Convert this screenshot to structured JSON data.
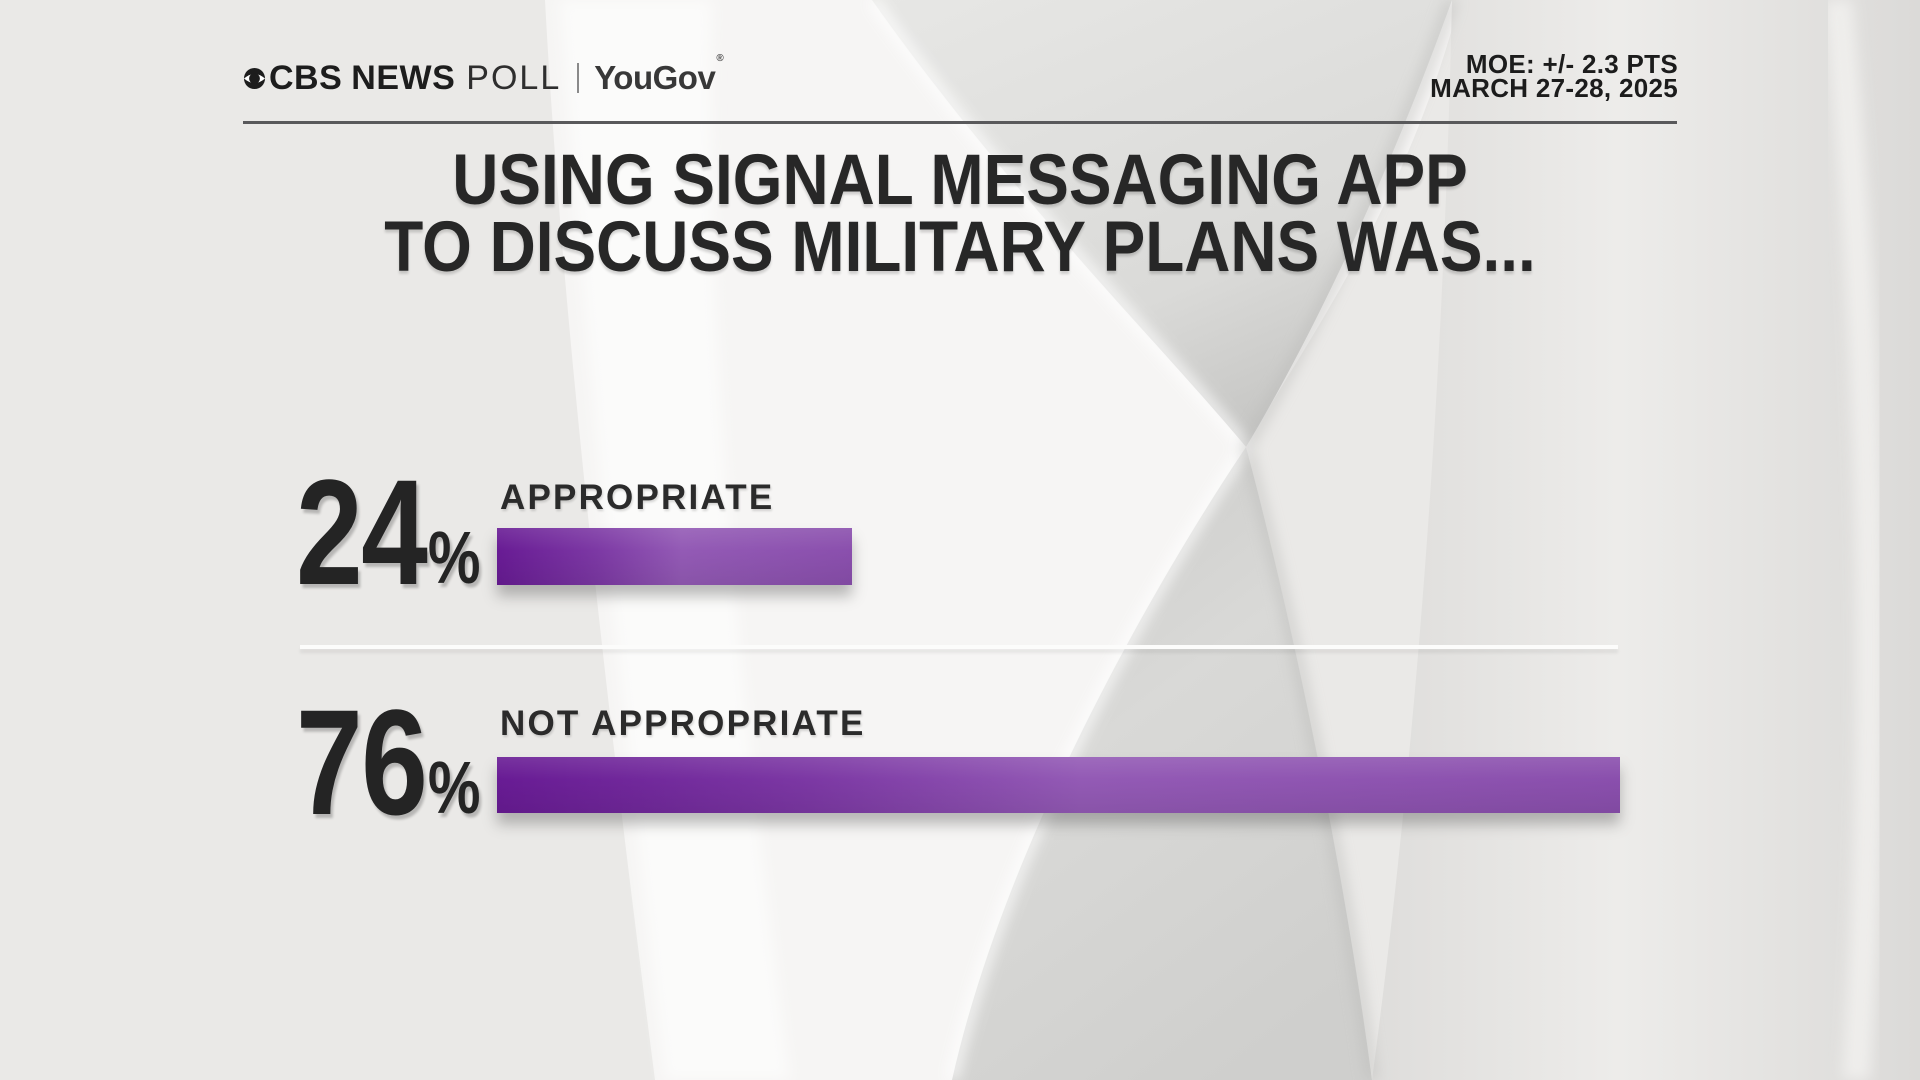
{
  "header": {
    "brand": {
      "cbs": "CBS",
      "news": "NEWS",
      "poll": "POLL",
      "partner": "YouGov",
      "registered": "®"
    },
    "moe_line1": "MOE: +/- 2.3 PTS",
    "moe_line2": "MARCH 27-28, 2025"
  },
  "title": {
    "line1": "USING SIGNAL MESSAGING APP",
    "line2": "TO DISCUSS MILITARY PLANS WAS..."
  },
  "rows": [
    {
      "value": "24",
      "percent_sign": "%",
      "label": "APPROPRIATE"
    },
    {
      "value": "76",
      "percent_sign": "%",
      "label": "NOT APPROPRIATE"
    }
  ],
  "chart_data": {
    "type": "bar",
    "orientation": "horizontal",
    "title": "USING SIGNAL MESSAGING APP TO DISCUSS MILITARY PLANS WAS...",
    "categories": [
      "APPROPRIATE",
      "NOT APPROPRIATE"
    ],
    "values": [
      24,
      76
    ],
    "unit": "%",
    "value_labels": [
      "24%",
      "76%"
    ],
    "xlim": [
      0,
      100
    ],
    "grid": false,
    "legend": "none",
    "bar_gradient": [
      "#681b94",
      "#935ab5",
      "#8a4fad"
    ],
    "source": "CBS NEWS POLL | YouGov",
    "moe": "MOE: +/- 2.3 PTS",
    "field_dates": "MARCH 27-28, 2025"
  },
  "colors": {
    "background": "#eae9e7",
    "text": "#262626",
    "header_rule": "#59595b",
    "bar_dark": "#681b94",
    "bar_light": "#935ab5"
  }
}
